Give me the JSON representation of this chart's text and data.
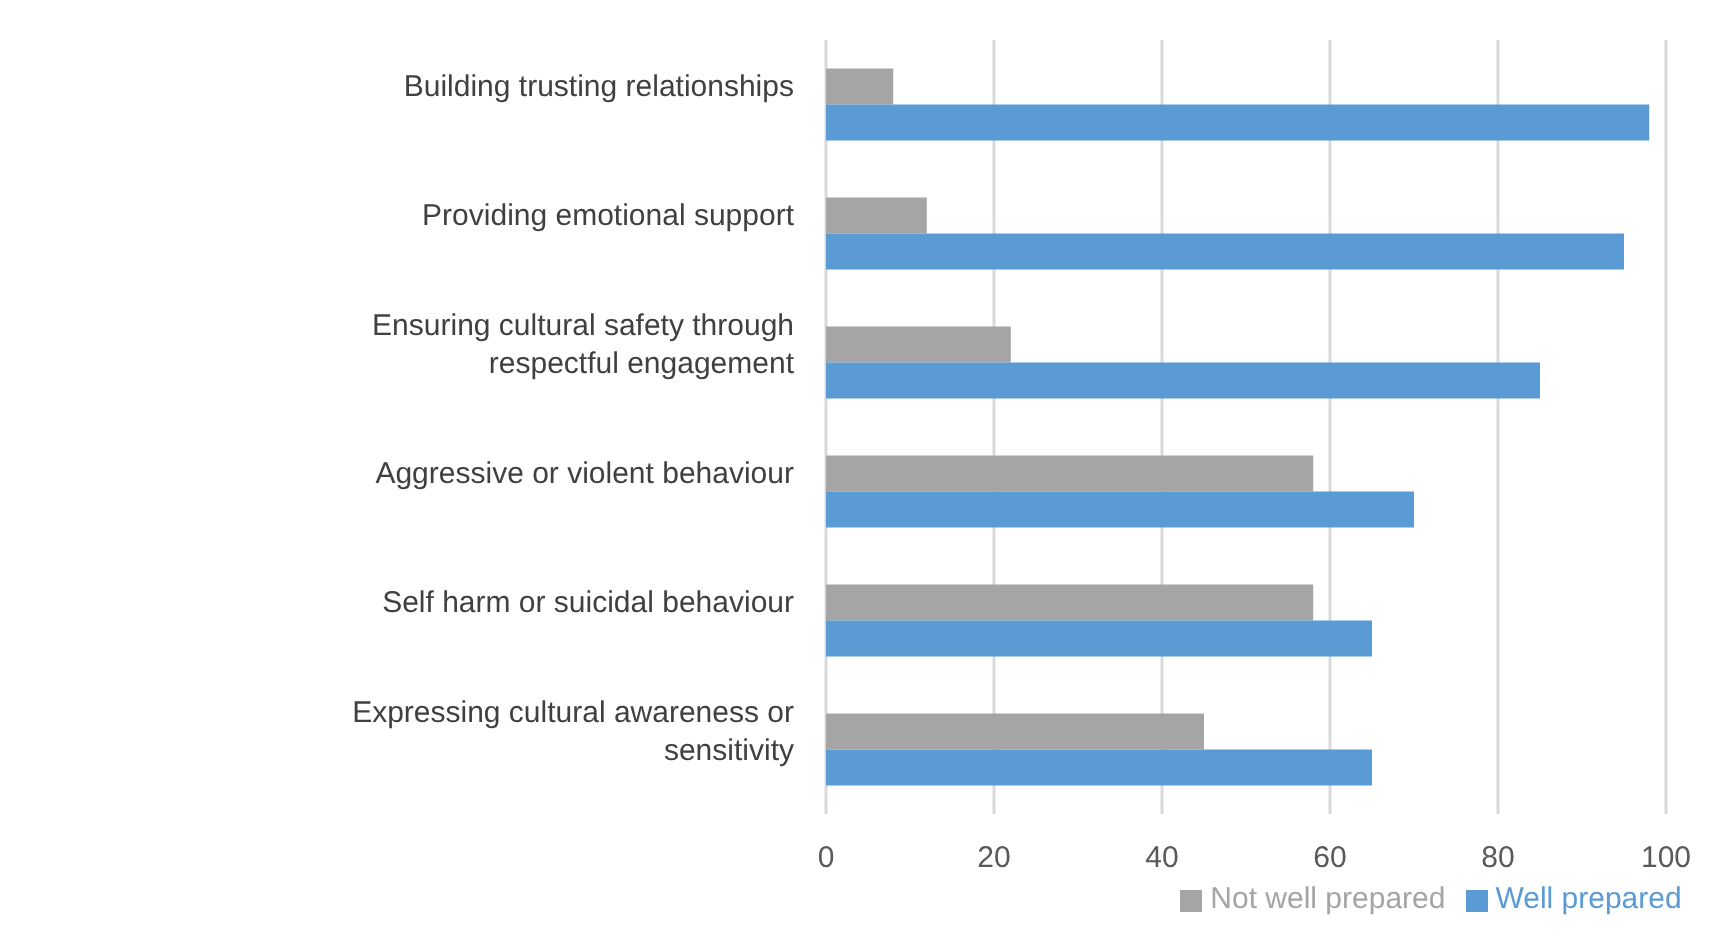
{
  "chart_data": {
    "type": "bar",
    "orientation": "horizontal",
    "categories": [
      "Building trusting relationships",
      "Providing emotional support",
      "Ensuring cultural safety through respectful engagement",
      "Aggressive or violent behaviour",
      "Self harm or suicidal behaviour",
      "Expressing cultural awareness or sensitivity"
    ],
    "series": [
      {
        "name": "Not well prepared",
        "color": "#a5a5a5",
        "values": [
          8,
          12,
          22,
          58,
          58,
          45
        ]
      },
      {
        "name": "Well prepared",
        "color": "#5b9bd5",
        "values": [
          98,
          95,
          85,
          70,
          65,
          65
        ]
      }
    ],
    "xlim": [
      0,
      100
    ],
    "xticks": [
      0,
      20,
      40,
      60,
      80,
      100
    ],
    "grid": "x",
    "legend": "bottom"
  }
}
